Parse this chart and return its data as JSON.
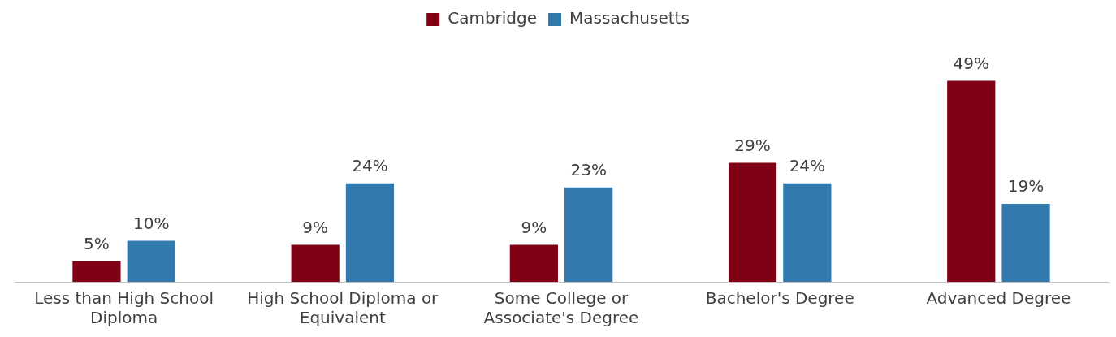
{
  "chart_data": {
    "type": "bar",
    "categories": [
      "Less than High School Diploma",
      "High School Diploma or Equivalent",
      "Some College or Associate's Degree",
      "Bachelor's Degree",
      "Advanced Degree"
    ],
    "series": [
      {
        "name": "Cambridge",
        "color": "#800015",
        "values": [
          5,
          9,
          9,
          29,
          49
        ],
        "value_labels": [
          "5%",
          "9%",
          "9%",
          "29%",
          "49%"
        ]
      },
      {
        "name": "Massachusetts",
        "color": "#327aae",
        "values": [
          10,
          24,
          23,
          24,
          19
        ],
        "value_labels": [
          "10%",
          "24%",
          "23%",
          "24%",
          "19%"
        ]
      }
    ],
    "relative": false,
    "legend": "top",
    "grid": false
  }
}
